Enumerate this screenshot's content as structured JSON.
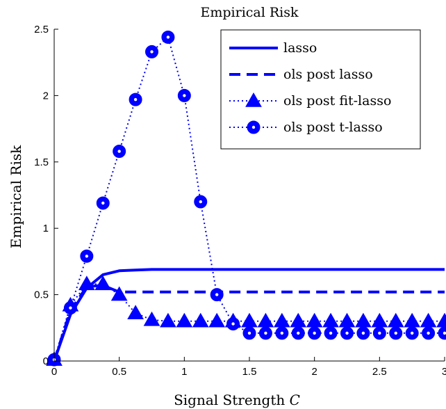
{
  "chart_data": {
    "type": "line",
    "title": "Empirical Risk",
    "xlabel": "Signal Strength",
    "xlabel_var": "C",
    "ylabel": "Empirical Risk",
    "xlim": [
      0,
      3
    ],
    "ylim": [
      0,
      2.5
    ],
    "xticks": [
      0,
      0.5,
      1,
      1.5,
      2,
      2.5,
      3
    ],
    "xtick_labels": [
      "0",
      "0.5",
      "1",
      "1.5",
      "2",
      "2.5",
      "3"
    ],
    "yticks": [
      0,
      0.5,
      1,
      1.5,
      2,
      2.5
    ],
    "ytick_labels": [
      "0",
      "0.5",
      "1",
      "1.5",
      "2",
      "2.5"
    ],
    "grid": false,
    "legend_position": "top-right",
    "color": "#0000ff",
    "x": [
      0,
      0.125,
      0.25,
      0.375,
      0.5,
      0.625,
      0.75,
      0.875,
      1.0,
      1.125,
      1.25,
      1.375,
      1.5,
      1.625,
      1.75,
      1.875,
      2.0,
      2.125,
      2.25,
      2.375,
      2.5,
      2.625,
      2.75,
      2.875,
      3.0
    ],
    "series": [
      {
        "name": "lasso",
        "style": "solid",
        "marker": "none",
        "values": [
          0.0,
          0.35,
          0.55,
          0.65,
          0.68,
          0.685,
          0.69,
          0.69,
          0.69,
          0.69,
          0.69,
          0.69,
          0.69,
          0.69,
          0.69,
          0.69,
          0.69,
          0.69,
          0.69,
          0.69,
          0.69,
          0.69,
          0.69,
          0.69,
          0.69
        ]
      },
      {
        "name": "ols post lasso",
        "style": "dashed",
        "marker": "none",
        "values": [
          0.0,
          0.38,
          0.56,
          0.57,
          0.52,
          0.52,
          0.52,
          0.52,
          0.52,
          0.52,
          0.52,
          0.52,
          0.52,
          0.52,
          0.52,
          0.52,
          0.52,
          0.52,
          0.52,
          0.52,
          0.52,
          0.52,
          0.52,
          0.52,
          0.52
        ]
      },
      {
        "name": "ols post fit-lasso",
        "style": "dotted",
        "marker": "triangle",
        "values": [
          0.01,
          0.42,
          0.58,
          0.58,
          0.5,
          0.36,
          0.31,
          0.3,
          0.3,
          0.3,
          0.3,
          0.3,
          0.3,
          0.3,
          0.3,
          0.3,
          0.3,
          0.3,
          0.3,
          0.3,
          0.3,
          0.3,
          0.3,
          0.3,
          0.3
        ]
      },
      {
        "name": "ols post t-lasso",
        "style": "dotted",
        "marker": "circle",
        "values": [
          0.01,
          0.4,
          0.79,
          1.19,
          1.58,
          1.97,
          2.33,
          2.44,
          2.0,
          1.2,
          0.5,
          0.28,
          0.21,
          0.21,
          0.21,
          0.21,
          0.21,
          0.21,
          0.21,
          0.21,
          0.21,
          0.21,
          0.21,
          0.21,
          0.21
        ]
      }
    ]
  }
}
